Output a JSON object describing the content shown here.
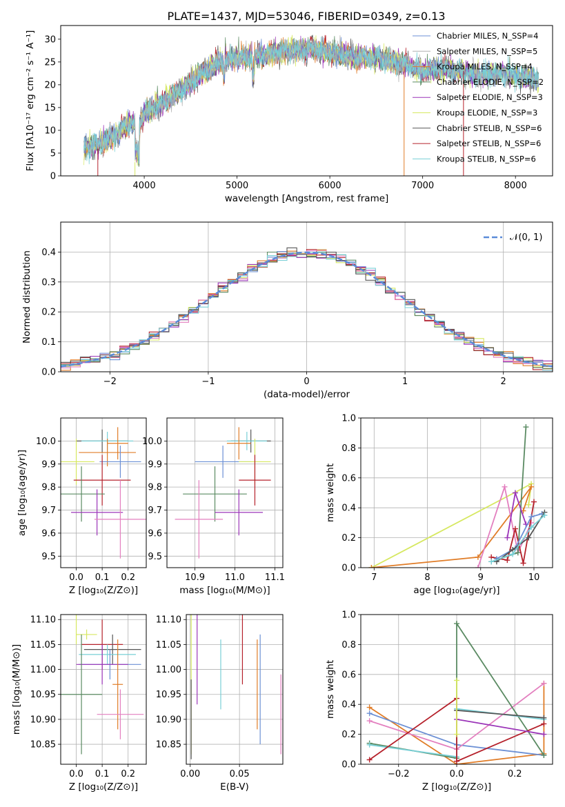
{
  "figure": {
    "title": "PLATE=1437, MJD=53046, FIBERID=0349, z=0.13"
  },
  "colors": {
    "chabrier_miles": "#6b8fd4",
    "salpeter_miles": "#b0b0b0",
    "kroupa_miles": "#e07c27",
    "chabrier_elodie": "#5a8a62",
    "salpeter_elodie": "#9b34b8",
    "kroupa_elodie": "#d6e860",
    "chabrier_stelib": "#555555",
    "salpeter_stelib": "#b5202a",
    "kroupa_stelib": "#77cfd6",
    "pink": "#e37fbf",
    "normal_curve": "#5b8bd8"
  },
  "chart_data": [
    {
      "id": "spectrum",
      "type": "line",
      "xlabel": "wavelength [Angstrom, rest frame]",
      "ylabel": "Flux [fλ10⁻¹⁷ erg cm⁻² s⁻¹ A⁻¹]",
      "xlim": [
        3100,
        8400
      ],
      "ylim": [
        0,
        33
      ],
      "xticks": [
        4000,
        5000,
        6000,
        7000,
        8000
      ],
      "yticks": [
        0,
        5,
        10,
        15,
        20,
        25,
        30
      ],
      "grid": false,
      "legend_position": "top-right",
      "legend": [
        "Chabrier MILES, N_SSP=4",
        "Salpeter MILES, N_SSP=5",
        "Kroupa MILES, N_SSP=4",
        "Chabrier ELODIE, N_SSP=2",
        "Salpeter ELODIE, N_SSP=3",
        "Kroupa ELODIE, N_SSP=3",
        "Chabrier STELIB, N_SSP=6",
        "Salpeter STELIB, N_SSP=6",
        "Kroupa STELIB, N_SSP=6"
      ],
      "continuum": [
        [
          3350,
          6
        ],
        [
          3500,
          7
        ],
        [
          3700,
          9
        ],
        [
          3850,
          12
        ],
        [
          3950,
          11
        ],
        [
          4000,
          14
        ],
        [
          4200,
          16
        ],
        [
          4400,
          19
        ],
        [
          4600,
          22
        ],
        [
          4800,
          25
        ],
        [
          5000,
          26
        ],
        [
          5200,
          26
        ],
        [
          5400,
          27
        ],
        [
          5600,
          27.5
        ],
        [
          5800,
          28
        ],
        [
          6000,
          27
        ],
        [
          6200,
          26.5
        ],
        [
          6400,
          26
        ],
        [
          6600,
          25.5
        ],
        [
          6800,
          24.5
        ],
        [
          7000,
          23
        ],
        [
          7200,
          23.5
        ],
        [
          7400,
          23
        ],
        [
          7600,
          22
        ],
        [
          7800,
          22.5
        ],
        [
          8000,
          22
        ],
        [
          8250,
          21
        ]
      ]
    },
    {
      "id": "residuals",
      "type": "bar",
      "xlabel": "(data-model)/error",
      "ylabel": "Normed distribution",
      "xlim": [
        -2.5,
        2.5
      ],
      "ylim": [
        0,
        0.5
      ],
      "xticks": [
        -2,
        -1,
        0,
        1,
        2
      ],
      "yticks": [
        0.0,
        0.1,
        0.2,
        0.3,
        0.4
      ],
      "grid": true,
      "legend_position": "top-right",
      "legend": [
        "𝒩(0, 1)"
      ]
    },
    {
      "id": "age_vs_Z",
      "type": "scatter",
      "xlabel": "Z [log₁₀(Z/Z⊙)]",
      "ylabel": "age  [log₁₀(age/yr)]",
      "xlim": [
        -0.06,
        0.27
      ],
      "ylim": [
        9.45,
        10.1
      ],
      "xticks": [
        0.0,
        0.1,
        0.2
      ],
      "yticks": [
        9.5,
        9.6,
        9.7,
        9.8,
        9.9,
        10.0
      ],
      "grid": true,
      "points": [
        {
          "x": 0.1,
          "y": 10.0,
          "xerr": 0.1,
          "yerr": 0.05,
          "color": "#555555"
        },
        {
          "x": 0.12,
          "y": 10.0,
          "xerr": 0.1,
          "yerr": 0.04,
          "color": "#77cfd6"
        },
        {
          "x": 0.16,
          "y": 9.99,
          "xerr": 0.04,
          "yerr": 0.07,
          "color": "#e07c27"
        },
        {
          "x": 0.12,
          "y": 9.95,
          "xerr": 0.11,
          "yerr": 0.06,
          "color": "#e07c27"
        },
        {
          "x": 0.17,
          "y": 9.91,
          "xerr": 0.08,
          "yerr": 0.07,
          "color": "#6b8fd4"
        },
        {
          "x": 0.0,
          "y": 9.91,
          "xerr": 0.07,
          "yerr": 0.1,
          "color": "#d6e860"
        },
        {
          "x": 0.1,
          "y": 9.83,
          "xerr": 0.11,
          "yerr": 0.11,
          "color": "#b5202a"
        },
        {
          "x": 0.02,
          "y": 9.77,
          "xerr": 0.09,
          "yerr": 0.12,
          "color": "#5a8a62"
        },
        {
          "x": 0.08,
          "y": 9.69,
          "xerr": 0.1,
          "yerr": 0.1,
          "color": "#9b34b8"
        },
        {
          "x": 0.17,
          "y": 9.66,
          "xerr": 0.1,
          "yerr": 0.17,
          "color": "#e37fbf"
        }
      ]
    },
    {
      "id": "age_vs_mass",
      "type": "scatter",
      "xlabel": "mass [log₁₀(M/M⊙)]",
      "ylabel": "",
      "xlim": [
        10.83,
        11.12
      ],
      "ylim": [
        9.45,
        10.1
      ],
      "xticks": [
        10.9,
        11.0,
        11.1
      ],
      "yticks": [
        9.5,
        9.6,
        9.7,
        9.8,
        9.9,
        10.0
      ],
      "grid": true,
      "points": [
        {
          "x": 11.04,
          "y": 10.0,
          "xerr": 0.05,
          "yerr": 0.05,
          "color": "#555555"
        },
        {
          "x": 11.03,
          "y": 10.0,
          "xerr": 0.05,
          "yerr": 0.04,
          "color": "#77cfd6"
        },
        {
          "x": 11.01,
          "y": 9.99,
          "xerr": 0.03,
          "yerr": 0.07,
          "color": "#e07c27"
        },
        {
          "x": 10.97,
          "y": 9.91,
          "xerr": 0.07,
          "yerr": 0.07,
          "color": "#6b8fd4"
        },
        {
          "x": 11.05,
          "y": 9.91,
          "xerr": 0.04,
          "yerr": 0.1,
          "color": "#d6e860"
        },
        {
          "x": 11.05,
          "y": 9.83,
          "xerr": 0.04,
          "yerr": 0.11,
          "color": "#b5202a"
        },
        {
          "x": 10.95,
          "y": 9.77,
          "xerr": 0.08,
          "yerr": 0.12,
          "color": "#5a8a62"
        },
        {
          "x": 11.01,
          "y": 9.69,
          "xerr": 0.06,
          "yerr": 0.1,
          "color": "#9b34b8"
        },
        {
          "x": 10.91,
          "y": 9.66,
          "xerr": 0.06,
          "yerr": 0.17,
          "color": "#e37fbf"
        }
      ]
    },
    {
      "id": "massweight_vs_age",
      "type": "line",
      "xlabel": "age  [log₁₀(age/yr)]",
      "ylabel": "mass weight",
      "xlim": [
        6.75,
        10.35
      ],
      "ylim": [
        0,
        1.0
      ],
      "xticks": [
        7,
        8,
        9,
        10
      ],
      "yticks": [
        0.0,
        0.2,
        0.4,
        0.6,
        0.8,
        1.0
      ],
      "grid": true,
      "series": [
        {
          "color": "#d6e860",
          "points": [
            [
              6.95,
              0.0
            ],
            [
              9.95,
              0.56
            ],
            [
              9.9,
              0.42
            ]
          ]
        },
        {
          "color": "#e07c27",
          "points": [
            [
              6.95,
              0.0
            ],
            [
              8.95,
              0.07
            ],
            [
              9.95,
              0.54
            ],
            [
              9.8,
              0.38
            ]
          ]
        },
        {
          "color": "#e37fbf",
          "points": [
            [
              8.95,
              0.0
            ],
            [
              9.45,
              0.54
            ],
            [
              9.7,
              0.1
            ],
            [
              9.95,
              0.3
            ]
          ]
        },
        {
          "color": "#5a8a62",
          "points": [
            [
              9.2,
              0.04
            ],
            [
              9.7,
              0.1
            ],
            [
              9.85,
              0.94
            ]
          ]
        },
        {
          "color": "#b5202a",
          "points": [
            [
              9.2,
              0.07
            ],
            [
              9.5,
              0.05
            ],
            [
              9.65,
              0.26
            ],
            [
              9.8,
              0.03
            ],
            [
              10.0,
              0.44
            ]
          ]
        },
        {
          "color": "#9b34b8",
          "points": [
            [
              9.5,
              0.2
            ],
            [
              9.65,
              0.5
            ],
            [
              9.85,
              0.29
            ]
          ]
        },
        {
          "color": "#6b8fd4",
          "points": [
            [
              9.3,
              0.06
            ],
            [
              9.65,
              0.13
            ],
            [
              9.95,
              0.34
            ],
            [
              10.15,
              0.36
            ]
          ]
        },
        {
          "color": "#555555",
          "points": [
            [
              9.3,
              0.04
            ],
            [
              9.6,
              0.12
            ],
            [
              9.9,
              0.2
            ],
            [
              10.2,
              0.37
            ]
          ]
        },
        {
          "color": "#77cfd6",
          "points": [
            [
              9.2,
              0.04
            ],
            [
              9.6,
              0.09
            ],
            [
              9.95,
              0.27
            ],
            [
              10.2,
              0.35
            ]
          ]
        }
      ]
    },
    {
      "id": "mass_vs_Z",
      "type": "scatter",
      "xlabel": "Z [log₁₀(Z/Z⊙)]",
      "ylabel": "mass [log₁₀(M/M⊙)]",
      "xlim": [
        -0.06,
        0.27
      ],
      "ylim": [
        10.81,
        11.11
      ],
      "xticks": [
        0.0,
        0.1,
        0.2
      ],
      "yticks": [
        10.85,
        10.9,
        10.95,
        11.0,
        11.05,
        11.1
      ],
      "grid": true,
      "points": [
        {
          "x": 0.0,
          "y": 11.08,
          "xerr": 0.0,
          "yerr": 0.03,
          "color": "#d6e860"
        },
        {
          "x": 0.04,
          "y": 11.07,
          "xerr": 0.04,
          "yerr": 0.01,
          "color": "#d6e860"
        },
        {
          "x": 0.1,
          "y": 11.05,
          "xerr": 0.08,
          "yerr": 0.05,
          "color": "#b5202a"
        },
        {
          "x": 0.14,
          "y": 11.04,
          "xerr": 0.11,
          "yerr": 0.03,
          "color": "#555555"
        },
        {
          "x": 0.12,
          "y": 11.03,
          "xerr": 0.11,
          "yerr": 0.02,
          "color": "#77cfd6"
        },
        {
          "x": 0.13,
          "y": 11.01,
          "xerr": 0.12,
          "yerr": 0.03,
          "color": "#6b8fd4"
        },
        {
          "x": 0.1,
          "y": 11.01,
          "xerr": 0.1,
          "yerr": 0.04,
          "color": "#9b34b8"
        },
        {
          "x": 0.16,
          "y": 10.97,
          "xerr": 0.02,
          "yerr": 0.09,
          "color": "#e07c27"
        },
        {
          "x": 0.02,
          "y": 10.95,
          "xerr": 0.08,
          "yerr": 0.12,
          "color": "#5a8a62"
        },
        {
          "x": 0.17,
          "y": 10.91,
          "xerr": 0.09,
          "yerr": 0.05,
          "color": "#e37fbf"
        }
      ]
    },
    {
      "id": "mass_vs_EBV",
      "type": "scatter",
      "xlabel": "E(B-V)",
      "ylabel": "",
      "xlim": [
        -0.004,
        0.094
      ],
      "ylim": [
        10.81,
        11.11
      ],
      "xticks": [
        0.0,
        0.05
      ],
      "yticks": [
        10.85,
        10.9,
        10.95,
        11.0,
        11.05,
        11.1
      ],
      "grid": true,
      "points": [
        {
          "x": 0.001,
          "y": 10.97,
          "yerr": 0.14,
          "color": "#d6e860"
        },
        {
          "x": 0.001,
          "y": 10.9,
          "yerr": 0.08,
          "color": "#555555"
        },
        {
          "x": 0.007,
          "y": 11.02,
          "yerr": 0.09,
          "color": "#9b34b8"
        },
        {
          "x": 0.031,
          "y": 10.99,
          "yerr": 0.07,
          "color": "#77cfd6"
        },
        {
          "x": 0.053,
          "y": 11.04,
          "yerr": 0.07,
          "color": "#b5202a"
        },
        {
          "x": 0.068,
          "y": 10.97,
          "yerr": 0.09,
          "color": "#e07c27"
        },
        {
          "x": 0.071,
          "y": 10.96,
          "yerr": 0.11,
          "color": "#6b8fd4"
        },
        {
          "x": 0.092,
          "y": 10.91,
          "yerr": 0.08,
          "color": "#e37fbf"
        }
      ]
    },
    {
      "id": "massweight_vs_Z",
      "type": "line",
      "xlabel": "Z [log₁₀(Z/Z⊙)]",
      "ylabel": "mass weight",
      "xlim": [
        -0.33,
        0.33
      ],
      "ylim": [
        0,
        1.0
      ],
      "xticks": [
        -0.2,
        0.0,
        0.2
      ],
      "yticks": [
        0.0,
        0.2,
        0.4,
        0.6,
        0.8,
        1.0
      ],
      "grid": true,
      "series": [
        {
          "color": "#e07c27",
          "points": [
            [
              -0.3,
              0.38
            ],
            [
              0.0,
              0.0
            ],
            [
              0.3,
              0.07
            ],
            [
              0.3,
              0.54
            ]
          ]
        },
        {
          "color": "#6b8fd4",
          "points": [
            [
              -0.3,
              0.34
            ],
            [
              0.0,
              0.13
            ],
            [
              0.3,
              0.06
            ]
          ]
        },
        {
          "color": "#e37fbf",
          "points": [
            [
              -0.3,
              0.29
            ],
            [
              0.0,
              0.1
            ],
            [
              0.3,
              0.54
            ]
          ]
        },
        {
          "color": "#5a8a62",
          "points": [
            [
              -0.3,
              0.14
            ],
            [
              0.0,
              0.04
            ],
            [
              0.0,
              0.94
            ],
            [
              0.3,
              0.06
            ]
          ]
        },
        {
          "color": "#77cfd6",
          "points": [
            [
              -0.3,
              0.13
            ],
            [
              0.0,
              0.05
            ],
            [
              0.0,
              0.37
            ],
            [
              0.3,
              0.3
            ]
          ]
        },
        {
          "color": "#b5202a",
          "points": [
            [
              -0.3,
              0.03
            ],
            [
              0.0,
              0.44
            ],
            [
              0.0,
              0.02
            ],
            [
              0.3,
              0.27
            ]
          ]
        },
        {
          "color": "#9b34b8",
          "points": [
            [
              0.0,
              0.3
            ],
            [
              0.3,
              0.2
            ]
          ]
        },
        {
          "color": "#555555",
          "points": [
            [
              0.0,
              0.36
            ],
            [
              0.3,
              0.31
            ]
          ]
        },
        {
          "color": "#d6e860",
          "points": [
            [
              0.0,
              0.56
            ],
            [
              0.0,
              0.2
            ]
          ]
        }
      ]
    }
  ]
}
